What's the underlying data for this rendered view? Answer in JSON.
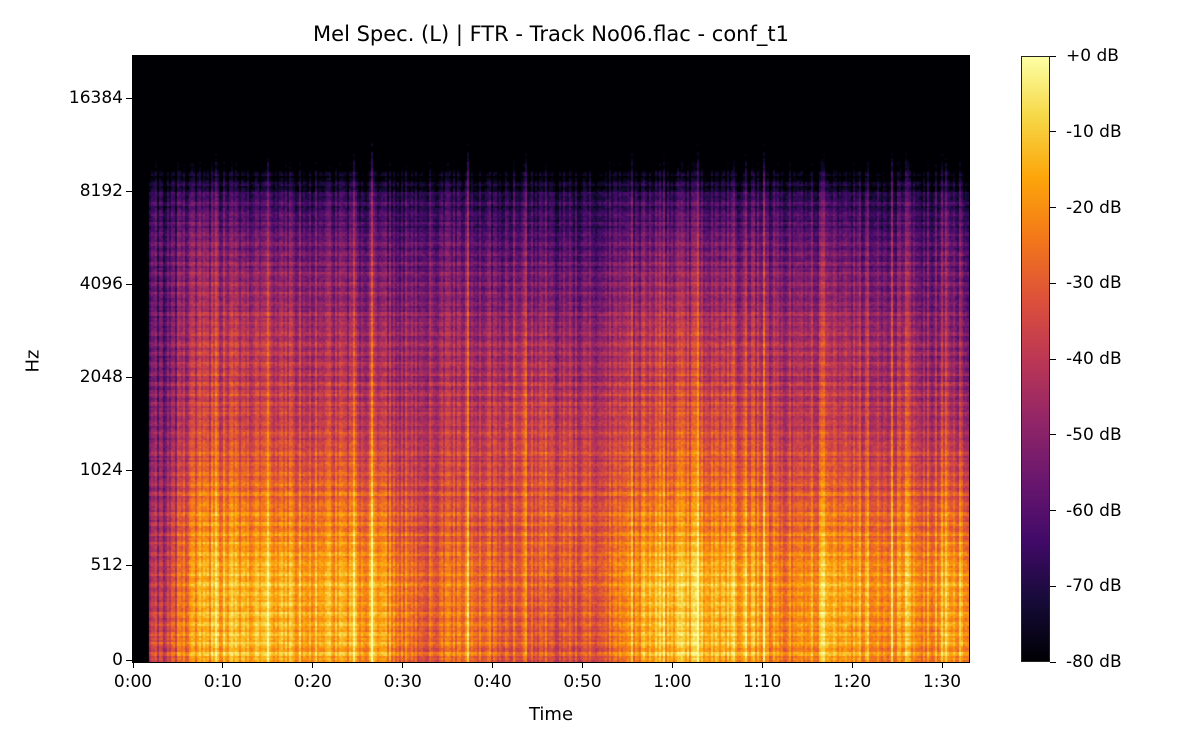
{
  "chart_data": {
    "type": "heatmap",
    "title": "Mel Spec. (L) | FTR - Track No06.flac - conf_t1",
    "xlabel": "Time",
    "ylabel": "Hz",
    "x_ticks": [
      {
        "value": 0,
        "label": "0:00"
      },
      {
        "value": 10,
        "label": "0:10"
      },
      {
        "value": 20,
        "label": "0:20"
      },
      {
        "value": 30,
        "label": "0:30"
      },
      {
        "value": 40,
        "label": "0:40"
      },
      {
        "value": 50,
        "label": "0:50"
      },
      {
        "value": 60,
        "label": "1:00"
      },
      {
        "value": 70,
        "label": "1:10"
      },
      {
        "value": 80,
        "label": "1:20"
      },
      {
        "value": 90,
        "label": "1:30"
      }
    ],
    "xlim_seconds": [
      0,
      93
    ],
    "y_scale": "mel",
    "y_ticks": [
      {
        "value": 0,
        "label": "0"
      },
      {
        "value": 512,
        "label": "512"
      },
      {
        "value": 1024,
        "label": "1024"
      },
      {
        "value": 2048,
        "label": "2048"
      },
      {
        "value": 4096,
        "label": "4096"
      },
      {
        "value": 8192,
        "label": "8192"
      },
      {
        "value": 16384,
        "label": "16384"
      }
    ],
    "ylim_hz": [
      0,
      22050
    ],
    "colormap": "inferno",
    "colormap_stops": [
      "#000004",
      "#160b39",
      "#420a68",
      "#6a176e",
      "#932667",
      "#bc3754",
      "#dd513a",
      "#f37819",
      "#fca50a",
      "#f6d746",
      "#fcffa4"
    ],
    "colorbar": {
      "range_db": [
        -80,
        0
      ],
      "ticks": [
        {
          "value": 0,
          "label": "+0 dB"
        },
        {
          "value": -10,
          "label": "-10 dB"
        },
        {
          "value": -20,
          "label": "-20 dB"
        },
        {
          "value": -30,
          "label": "-30 dB"
        },
        {
          "value": -40,
          "label": "-40 dB"
        },
        {
          "value": -50,
          "label": "-50 dB"
        },
        {
          "value": -60,
          "label": "-60 dB"
        },
        {
          "value": -70,
          "label": "-70 dB"
        },
        {
          "value": -80,
          "label": "-80 dB"
        }
      ]
    },
    "grid": false,
    "approx_levels_db": {
      "time_bin_centers_s": [
        2.5,
        7.5,
        12.5,
        17.5,
        22.5,
        27.5,
        32.5,
        37.5,
        42.5,
        47.5,
        52.5,
        57.5,
        62.5,
        67.5,
        72.5,
        77.5,
        82.5,
        87.5,
        92.5
      ],
      "bands_hz": [
        [
          0,
          256
        ],
        [
          256,
          512
        ],
        [
          512,
          1024
        ],
        [
          1024,
          2048
        ],
        [
          2048,
          4096
        ],
        [
          4096,
          8192
        ],
        [
          8192,
          16384
        ],
        [
          16384,
          22050
        ]
      ],
      "values": [
        [
          -40,
          -15,
          -12,
          -14,
          -15,
          -16,
          -30,
          -22,
          -30,
          -32,
          -30,
          -14,
          -12,
          -14,
          -22,
          -14,
          -18,
          -20,
          -16
        ],
        [
          -45,
          -14,
          -12,
          -13,
          -14,
          -16,
          -28,
          -22,
          -28,
          -30,
          -28,
          -12,
          -11,
          -13,
          -22,
          -13,
          -16,
          -18,
          -15
        ],
        [
          -50,
          -22,
          -22,
          -24,
          -24,
          -25,
          -35,
          -30,
          -32,
          -30,
          -32,
          -22,
          -22,
          -24,
          -30,
          -24,
          -26,
          -28,
          -26
        ],
        [
          -55,
          -35,
          -35,
          -36,
          -36,
          -38,
          -42,
          -38,
          -35,
          -38,
          -40,
          -34,
          -32,
          -34,
          -40,
          -36,
          -38,
          -40,
          -42
        ],
        [
          -60,
          -40,
          -40,
          -42,
          -44,
          -45,
          -48,
          -45,
          -45,
          -48,
          -48,
          -40,
          -40,
          -42,
          -45,
          -42,
          -44,
          -48,
          -50
        ],
        [
          -65,
          -52,
          -55,
          -55,
          -56,
          -58,
          -60,
          -58,
          -60,
          -62,
          -62,
          -56,
          -55,
          -56,
          -58,
          -56,
          -58,
          -60,
          -58
        ],
        [
          -80,
          -78,
          -78,
          -78,
          -78,
          -78,
          -78,
          -78,
          -78,
          -78,
          -78,
          -78,
          -78,
          -78,
          -78,
          -78,
          -78,
          -78,
          -78
        ],
        [
          -80,
          -80,
          -80,
          -80,
          -80,
          -80,
          -80,
          -80,
          -80,
          -80,
          -80,
          -80,
          -80,
          -80,
          -80,
          -80,
          -80,
          -80,
          -80
        ]
      ]
    }
  }
}
